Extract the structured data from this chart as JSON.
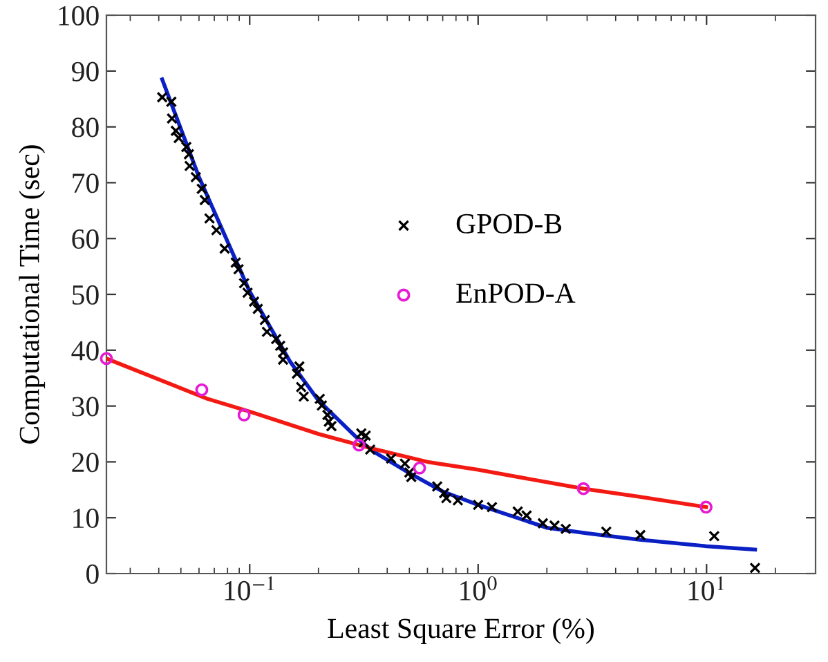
{
  "chart_data": {
    "type": "scatter",
    "xlabel": "Least Square Error (%)",
    "ylabel": "Computational Time (sec)",
    "log": "x",
    "xlim": [
      0.0236,
      30
    ],
    "xticks": [
      {
        "value": 0.1,
        "label": "10$^{−1}$"
      },
      {
        "value": 1,
        "label": "10$^{0}$"
      },
      {
        "value": 10,
        "label": "10$^{1}$"
      }
    ],
    "ylim": [
      0,
      100
    ],
    "yticks": [
      0,
      10,
      20,
      30,
      40,
      50,
      60,
      70,
      80,
      90,
      100
    ],
    "grid": false,
    "legend": "center",
    "series": [
      {
        "name": "GPOD-B",
        "marker": "cross",
        "color": "#000000",
        "x": [
          0.0414,
          0.0454,
          0.0457,
          0.0475,
          0.0489,
          0.0528,
          0.0542,
          0.0546,
          0.0581,
          0.0617,
          0.0636,
          0.0667,
          0.0715,
          0.0777,
          0.0869,
          0.0894,
          0.0945,
          0.0979,
          0.1045,
          0.1085,
          0.1165,
          0.119,
          0.1306,
          0.136,
          0.14,
          0.14,
          0.165,
          0.161,
          0.168,
          0.1725,
          0.2027,
          0.207,
          0.219,
          0.222,
          0.228,
          0.308,
          0.322,
          0.315,
          0.337,
          0.416,
          0.478,
          0.5,
          0.51,
          0.662,
          0.71,
          0.726,
          0.815,
          1.0,
          1.15,
          1.49,
          1.63,
          1.92,
          2.16,
          2.42,
          3.64,
          5.13,
          10.8,
          16.3
        ],
        "values": [
          85.3,
          84.5,
          81.5,
          79.3,
          78,
          76.4,
          75.1,
          73,
          71,
          68.9,
          66.9,
          63.6,
          61.5,
          58.2,
          55.7,
          54.5,
          52,
          50.3,
          48.7,
          47.4,
          45.4,
          43.3,
          42,
          40.8,
          39.6,
          38.3,
          37.1,
          35.8,
          33.4,
          31.7,
          31.3,
          30.1,
          28.4,
          27.2,
          26.4,
          25.1,
          24.7,
          23.5,
          22.2,
          20.6,
          19.7,
          18.1,
          17.3,
          15.6,
          14.4,
          13.5,
          13.1,
          12.3,
          11.9,
          11.1,
          10.4,
          9.0,
          8.6,
          8.0,
          7.5,
          6.9,
          6.7,
          1.0
        ]
      },
      {
        "name": "EnPOD-A",
        "marker": "circle",
        "color": "#e619d4",
        "x": [
          0.0236,
          0.0617,
          0.0945,
          0.301,
          0.554,
          2.89,
          9.95
        ],
        "values": [
          38.5,
          32.9,
          28.4,
          23.0,
          18.9,
          15.2,
          11.9
        ]
      },
      {
        "type": "line",
        "line_style": "solid",
        "marker": "none",
        "color": "#0a1fc4",
        "x": [
          0.0414,
          0.06,
          0.1,
          0.15,
          0.2,
          0.3,
          0.35,
          0.5,
          0.7,
          1,
          2,
          3,
          5,
          10,
          16.3
        ],
        "values": [
          88.5,
          71,
          50.5,
          38,
          31,
          24,
          21.8,
          18,
          14.7,
          12.3,
          8.2,
          7.2,
          6.1,
          4.9,
          4.3
        ]
      },
      {
        "type": "line",
        "line_style": "solid",
        "marker": "none",
        "color": "#f21a12",
        "x": [
          0.0236,
          0.0653,
          0.1,
          0.2,
          0.35,
          0.6,
          1,
          2.1,
          2.9,
          5,
          9.95
        ],
        "values": [
          38.5,
          31.3,
          29,
          25,
          22.3,
          20,
          18.6,
          16.2,
          15.2,
          13.8,
          11.9
        ]
      }
    ]
  }
}
